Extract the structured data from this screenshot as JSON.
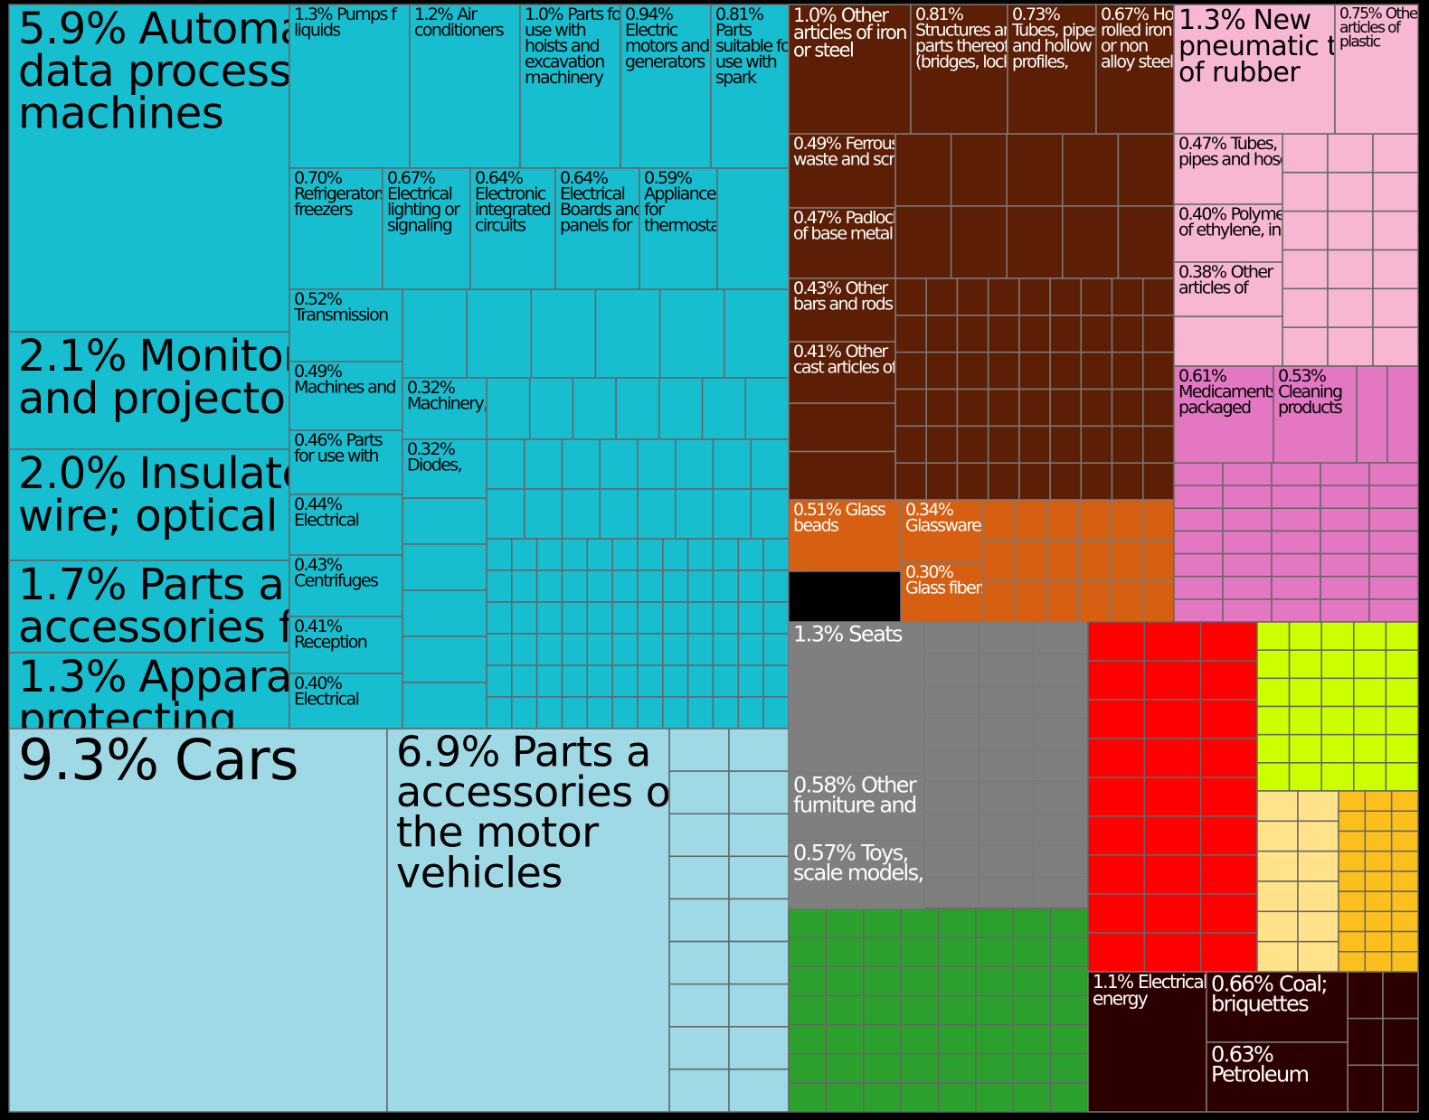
{
  "chart_data": {
    "type": "treemap",
    "values": [
      5.9,
      2.1,
      2.0,
      1.7,
      1.3,
      9.3,
      6.9,
      1.3,
      1.2,
      1.0,
      0.94,
      0.81,
      0.7,
      0.67,
      0.64,
      0.64,
      0.59,
      0.52,
      0.49,
      0.46,
      0.44,
      0.43,
      0.41,
      0.4,
      0.32,
      0.32,
      1.0,
      0.81,
      0.73,
      0.67,
      0.49,
      0.47,
      0.43,
      0.41,
      0.51,
      0.34,
      0.3,
      1.3,
      0.75,
      0.47,
      0.4,
      0.38,
      0.61,
      0.53,
      1.3,
      0.58,
      0.57,
      1.1,
      0.66,
      0.63
    ],
    "value_labels": [
      "5.9%",
      "2.1%",
      "2.0%",
      "1.7%",
      "1.3%",
      "9.3%",
      "6.9%",
      "1.3%",
      "1.2%",
      "1.0%",
      "0.94%",
      "0.81%",
      "0.70%",
      "0.67%",
      "0.64%",
      "0.64%",
      "0.59%",
      "0.52%",
      "0.49%",
      "0.46%",
      "0.44%",
      "0.43%",
      "0.41%",
      "0.40%",
      "0.32%",
      "0.32%",
      "1.0%",
      "0.81%",
      "0.73%",
      "0.67%",
      "0.49%",
      "0.47%",
      "0.43%",
      "0.41%",
      "0.51%",
      "0.34%",
      "0.30%",
      "1.3%",
      "0.75%",
      "0.47%",
      "0.40%",
      "0.38%",
      "0.61%",
      "0.53%",
      "1.3%",
      "0.58%",
      "0.57%",
      "1.1%",
      "0.66%",
      "0.63%"
    ],
    "categories": [
      [
        "Automa",
        "data process",
        "machines"
      ],
      [
        "Monitor",
        "and projector"
      ],
      [
        "Insulated",
        "wire; optical"
      ],
      [
        "Parts a",
        "accessories f"
      ],
      [
        "Appara",
        "protecting"
      ],
      [
        "Cars"
      ],
      [
        "Parts a",
        "accessories o",
        "the motor",
        "vehicles"
      ],
      [
        "Pumps f",
        "liquids"
      ],
      [
        "Air",
        "conditioners"
      ],
      [
        "Parts for",
        "use with",
        "hoists and",
        "excavation",
        "machinery"
      ],
      [
        "Electric",
        "motors and",
        "generators"
      ],
      [
        "Parts",
        "suitable for",
        "use with",
        "spark"
      ],
      [
        "Refrigerators,",
        "freezers"
      ],
      [
        "Electrical",
        "lighting or",
        "signaling"
      ],
      [
        "Electronic",
        "integrated",
        "circuits"
      ],
      [
        "Electrical",
        "Boards and",
        "panels for"
      ],
      [
        "Appliances",
        "for",
        "thermostat"
      ],
      [
        "Transmission"
      ],
      [
        "Machines and"
      ],
      [
        "Parts",
        "for use with"
      ],
      [
        "Electrical"
      ],
      [
        "Centrifuges"
      ],
      [
        "Reception"
      ],
      [
        "Electrical"
      ],
      [
        "Machinery,"
      ],
      [
        "Diodes,"
      ],
      [
        "Other",
        "articles of iron",
        "or steel"
      ],
      [
        "Structures and",
        "parts thereof",
        "(bridges, lock"
      ],
      [
        "Tubes, pipes",
        "and hollow",
        "profiles,"
      ],
      [
        "Hot",
        "rolled iron",
        "or non",
        "alloy steel,"
      ],
      [
        "Ferrous",
        "waste and scra"
      ],
      [
        "Padlock",
        "of base metal"
      ],
      [
        "Other",
        "bars and rods o"
      ],
      [
        "Other",
        "cast articles of"
      ],
      [
        "Glass",
        "beads"
      ],
      [
        "Glassware"
      ],
      [
        "Glass fibers"
      ],
      [
        "New",
        "pneumatic tir",
        "of rubber"
      ],
      [
        "Other",
        "articles of",
        "plastic"
      ],
      [
        "Tubes,",
        "pipes and hose"
      ],
      [
        "Polyme",
        "of ethylene, in"
      ],
      [
        "Other",
        "articles of"
      ],
      [
        "Medicaments",
        "packaged"
      ],
      [
        "Cleaning",
        "products"
      ],
      [
        "Seats"
      ],
      [
        "Other",
        "furniture and"
      ],
      [
        "Toys,",
        "scale models,"
      ],
      [
        "Electrical",
        "energy"
      ],
      [
        "Coal;",
        "briquettes"
      ],
      [
        "Petroleum"
      ]
    ]
  }
}
